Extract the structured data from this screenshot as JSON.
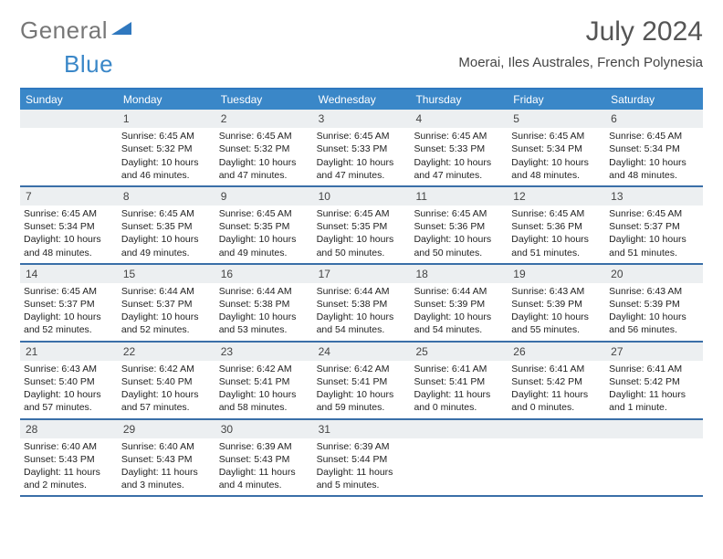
{
  "logo": {
    "part1": "General",
    "part2": "Blue",
    "mark_color": "#2f78bf"
  },
  "title": "July 2024",
  "subtitle": "Moerai, Iles Australes, French Polynesia",
  "colors": {
    "header_bg": "#3a87c8",
    "header_text": "#ffffff",
    "rule": "#3a6fa8",
    "daynum_bg": "#eceff1",
    "body_text": "#222222"
  },
  "day_headers": [
    "Sunday",
    "Monday",
    "Tuesday",
    "Wednesday",
    "Thursday",
    "Friday",
    "Saturday"
  ],
  "weeks": [
    [
      null,
      {
        "n": "1",
        "sr": "Sunrise: 6:45 AM",
        "ss": "Sunset: 5:32 PM",
        "d1": "Daylight: 10 hours",
        "d2": "and 46 minutes."
      },
      {
        "n": "2",
        "sr": "Sunrise: 6:45 AM",
        "ss": "Sunset: 5:32 PM",
        "d1": "Daylight: 10 hours",
        "d2": "and 47 minutes."
      },
      {
        "n": "3",
        "sr": "Sunrise: 6:45 AM",
        "ss": "Sunset: 5:33 PM",
        "d1": "Daylight: 10 hours",
        "d2": "and 47 minutes."
      },
      {
        "n": "4",
        "sr": "Sunrise: 6:45 AM",
        "ss": "Sunset: 5:33 PM",
        "d1": "Daylight: 10 hours",
        "d2": "and 47 minutes."
      },
      {
        "n": "5",
        "sr": "Sunrise: 6:45 AM",
        "ss": "Sunset: 5:34 PM",
        "d1": "Daylight: 10 hours",
        "d2": "and 48 minutes."
      },
      {
        "n": "6",
        "sr": "Sunrise: 6:45 AM",
        "ss": "Sunset: 5:34 PM",
        "d1": "Daylight: 10 hours",
        "d2": "and 48 minutes."
      }
    ],
    [
      {
        "n": "7",
        "sr": "Sunrise: 6:45 AM",
        "ss": "Sunset: 5:34 PM",
        "d1": "Daylight: 10 hours",
        "d2": "and 48 minutes."
      },
      {
        "n": "8",
        "sr": "Sunrise: 6:45 AM",
        "ss": "Sunset: 5:35 PM",
        "d1": "Daylight: 10 hours",
        "d2": "and 49 minutes."
      },
      {
        "n": "9",
        "sr": "Sunrise: 6:45 AM",
        "ss": "Sunset: 5:35 PM",
        "d1": "Daylight: 10 hours",
        "d2": "and 49 minutes."
      },
      {
        "n": "10",
        "sr": "Sunrise: 6:45 AM",
        "ss": "Sunset: 5:35 PM",
        "d1": "Daylight: 10 hours",
        "d2": "and 50 minutes."
      },
      {
        "n": "11",
        "sr": "Sunrise: 6:45 AM",
        "ss": "Sunset: 5:36 PM",
        "d1": "Daylight: 10 hours",
        "d2": "and 50 minutes."
      },
      {
        "n": "12",
        "sr": "Sunrise: 6:45 AM",
        "ss": "Sunset: 5:36 PM",
        "d1": "Daylight: 10 hours",
        "d2": "and 51 minutes."
      },
      {
        "n": "13",
        "sr": "Sunrise: 6:45 AM",
        "ss": "Sunset: 5:37 PM",
        "d1": "Daylight: 10 hours",
        "d2": "and 51 minutes."
      }
    ],
    [
      {
        "n": "14",
        "sr": "Sunrise: 6:45 AM",
        "ss": "Sunset: 5:37 PM",
        "d1": "Daylight: 10 hours",
        "d2": "and 52 minutes."
      },
      {
        "n": "15",
        "sr": "Sunrise: 6:44 AM",
        "ss": "Sunset: 5:37 PM",
        "d1": "Daylight: 10 hours",
        "d2": "and 52 minutes."
      },
      {
        "n": "16",
        "sr": "Sunrise: 6:44 AM",
        "ss": "Sunset: 5:38 PM",
        "d1": "Daylight: 10 hours",
        "d2": "and 53 minutes."
      },
      {
        "n": "17",
        "sr": "Sunrise: 6:44 AM",
        "ss": "Sunset: 5:38 PM",
        "d1": "Daylight: 10 hours",
        "d2": "and 54 minutes."
      },
      {
        "n": "18",
        "sr": "Sunrise: 6:44 AM",
        "ss": "Sunset: 5:39 PM",
        "d1": "Daylight: 10 hours",
        "d2": "and 54 minutes."
      },
      {
        "n": "19",
        "sr": "Sunrise: 6:43 AM",
        "ss": "Sunset: 5:39 PM",
        "d1": "Daylight: 10 hours",
        "d2": "and 55 minutes."
      },
      {
        "n": "20",
        "sr": "Sunrise: 6:43 AM",
        "ss": "Sunset: 5:39 PM",
        "d1": "Daylight: 10 hours",
        "d2": "and 56 minutes."
      }
    ],
    [
      {
        "n": "21",
        "sr": "Sunrise: 6:43 AM",
        "ss": "Sunset: 5:40 PM",
        "d1": "Daylight: 10 hours",
        "d2": "and 57 minutes."
      },
      {
        "n": "22",
        "sr": "Sunrise: 6:42 AM",
        "ss": "Sunset: 5:40 PM",
        "d1": "Daylight: 10 hours",
        "d2": "and 57 minutes."
      },
      {
        "n": "23",
        "sr": "Sunrise: 6:42 AM",
        "ss": "Sunset: 5:41 PM",
        "d1": "Daylight: 10 hours",
        "d2": "and 58 minutes."
      },
      {
        "n": "24",
        "sr": "Sunrise: 6:42 AM",
        "ss": "Sunset: 5:41 PM",
        "d1": "Daylight: 10 hours",
        "d2": "and 59 minutes."
      },
      {
        "n": "25",
        "sr": "Sunrise: 6:41 AM",
        "ss": "Sunset: 5:41 PM",
        "d1": "Daylight: 11 hours",
        "d2": "and 0 minutes."
      },
      {
        "n": "26",
        "sr": "Sunrise: 6:41 AM",
        "ss": "Sunset: 5:42 PM",
        "d1": "Daylight: 11 hours",
        "d2": "and 0 minutes."
      },
      {
        "n": "27",
        "sr": "Sunrise: 6:41 AM",
        "ss": "Sunset: 5:42 PM",
        "d1": "Daylight: 11 hours",
        "d2": "and 1 minute."
      }
    ],
    [
      {
        "n": "28",
        "sr": "Sunrise: 6:40 AM",
        "ss": "Sunset: 5:43 PM",
        "d1": "Daylight: 11 hours",
        "d2": "and 2 minutes."
      },
      {
        "n": "29",
        "sr": "Sunrise: 6:40 AM",
        "ss": "Sunset: 5:43 PM",
        "d1": "Daylight: 11 hours",
        "d2": "and 3 minutes."
      },
      {
        "n": "30",
        "sr": "Sunrise: 6:39 AM",
        "ss": "Sunset: 5:43 PM",
        "d1": "Daylight: 11 hours",
        "d2": "and 4 minutes."
      },
      {
        "n": "31",
        "sr": "Sunrise: 6:39 AM",
        "ss": "Sunset: 5:44 PM",
        "d1": "Daylight: 11 hours",
        "d2": "and 5 minutes."
      },
      null,
      null,
      null
    ]
  ]
}
